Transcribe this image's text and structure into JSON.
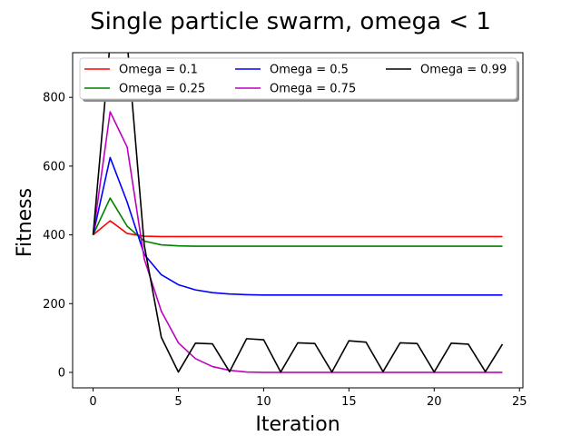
{
  "chart_data": {
    "type": "line",
    "title": "Single particle swarm, omega < 1",
    "xlabel": "Iteration",
    "ylabel": "Fitness",
    "xlim": [
      -1.2,
      25.2
    ],
    "ylim": [
      -45,
      930
    ],
    "xticks": [
      0,
      5,
      10,
      15,
      20,
      25
    ],
    "yticks": [
      0,
      200,
      400,
      600,
      800
    ],
    "grid": false,
    "legend": {
      "placement": "top",
      "columns": 3,
      "shadow": true
    },
    "x": [
      0,
      1,
      2,
      3,
      4,
      5,
      6,
      7,
      8,
      9,
      10,
      11,
      12,
      13,
      14,
      15,
      16,
      17,
      18,
      19,
      20,
      21,
      22,
      23,
      24
    ],
    "series": [
      {
        "name": "Omega = 0.1",
        "color": "#ff0000",
        "values": [
          400,
          441,
          404,
          396,
          395,
          395,
          395,
          395,
          395,
          395,
          395,
          395,
          395,
          395,
          395,
          395,
          395,
          395,
          395,
          395,
          395,
          395,
          395,
          395,
          395
        ]
      },
      {
        "name": "Omega = 0.25",
        "color": "#008000",
        "values": [
          400,
          507,
          425,
          382,
          371,
          368,
          367,
          367,
          367,
          367,
          367,
          367,
          367,
          367,
          367,
          367,
          367,
          367,
          367,
          367,
          367,
          367,
          367,
          367,
          367
        ]
      },
      {
        "name": "Omega = 0.5",
        "color": "#0000ff",
        "values": [
          400,
          625,
          495,
          343,
          284,
          255,
          240,
          232,
          228,
          226,
          225,
          225,
          225,
          225,
          225,
          225,
          225,
          225,
          225,
          225,
          225,
          225,
          225,
          225,
          225
        ]
      },
      {
        "name": "Omega = 0.75",
        "color": "#bf00bf",
        "values": [
          400,
          758,
          655,
          330,
          178,
          86,
          40,
          17,
          6,
          1,
          0,
          0,
          0,
          0,
          0,
          0,
          0,
          0,
          0,
          0,
          0,
          0,
          0,
          0,
          0
        ]
      },
      {
        "name": "Omega = 0.99",
        "color": "#000000",
        "values": [
          400,
          960,
          960,
          370,
          102,
          1,
          85,
          83,
          2,
          98,
          95,
          1,
          86,
          84,
          1,
          92,
          88,
          2,
          86,
          84,
          1,
          85,
          82,
          2,
          82
        ]
      }
    ]
  }
}
